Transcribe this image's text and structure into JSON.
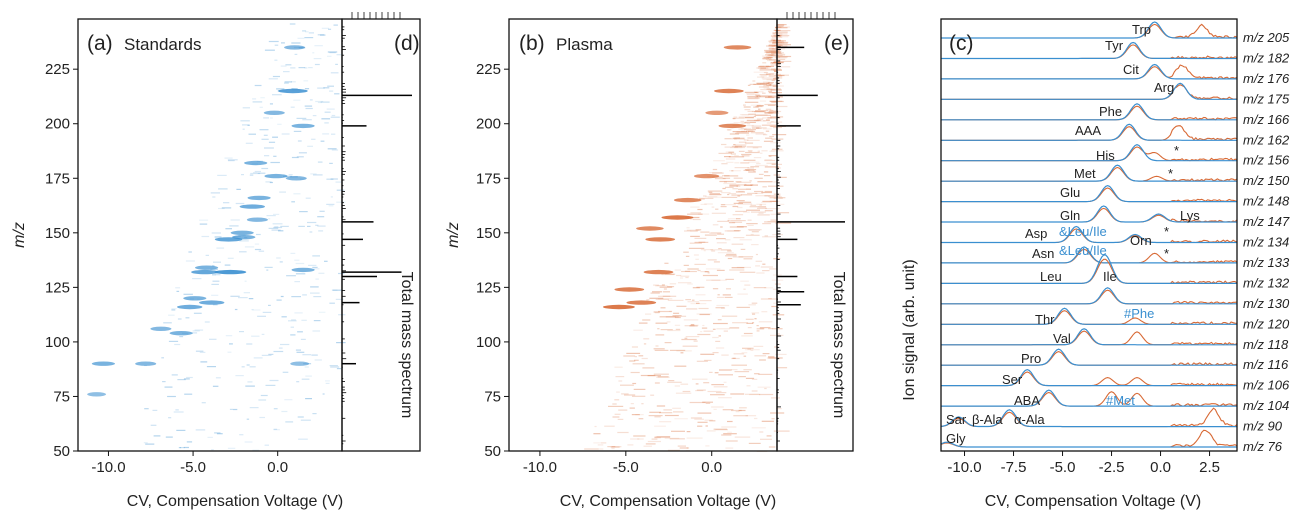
{
  "colors": {
    "standards": "#3a8fd0",
    "plasma": "#d86a36",
    "axis": "#111111",
    "spectrum": "#000000"
  },
  "panel_a": {
    "letter": "(a)",
    "title": "Standards"
  },
  "panel_b": {
    "letter": "(b)",
    "title": "Plasma"
  },
  "panel_c": {
    "letter": "(c)",
    "ylabel": "Ion signal (arb. unit)"
  },
  "panel_d": {
    "letter": "(d)",
    "label": "Total mass spectrum"
  },
  "panel_e": {
    "letter": "(e)",
    "label": "Total mass spectrum"
  },
  "heatmap_ylabel": "m/z",
  "xlabel": "CV, Compensation Voltage (V)",
  "chart_data": [
    {
      "panel": "a",
      "type": "heatmap",
      "title": "Standards",
      "xlabel": "CV, Compensation Voltage (V)",
      "ylabel": "m/z",
      "xlim": [
        -11.8,
        3.8
      ],
      "ylim": [
        50,
        248
      ],
      "xticks": [
        -10.0,
        -5.0,
        0.0
      ],
      "xtick_labels": [
        "-10.0",
        "-5.0",
        "0.0"
      ],
      "yticks": [
        50,
        75,
        100,
        125,
        150,
        175,
        200,
        225
      ],
      "features": [
        {
          "mz": 90,
          "cv": -10.3,
          "i": 0.6
        },
        {
          "mz": 90,
          "cv": -7.8,
          "i": 0.5
        },
        {
          "mz": 90,
          "cv": 1.3,
          "i": 0.4
        },
        {
          "mz": 76,
          "cv": -10.7,
          "i": 0.4
        },
        {
          "mz": 104,
          "cv": -5.7,
          "i": 0.6
        },
        {
          "mz": 106,
          "cv": -6.9,
          "i": 0.5
        },
        {
          "mz": 116,
          "cv": -5.2,
          "i": 0.7
        },
        {
          "mz": 118,
          "cv": -3.9,
          "i": 0.7
        },
        {
          "mz": 120,
          "cv": -4.9,
          "i": 0.6
        },
        {
          "mz": 132,
          "cv": -2.8,
          "i": 1.0
        },
        {
          "mz": 132,
          "cv": -4.3,
          "i": 0.8
        },
        {
          "mz": 133,
          "cv": 1.5,
          "i": 0.6
        },
        {
          "mz": 134,
          "cv": -4.2,
          "i": 0.6
        },
        {
          "mz": 147,
          "cv": -2.9,
          "i": 0.8
        },
        {
          "mz": 148,
          "cv": -2.0,
          "i": 0.6
        },
        {
          "mz": 150,
          "cv": -2.1,
          "i": 0.6
        },
        {
          "mz": 156,
          "cv": -1.2,
          "i": 0.5
        },
        {
          "mz": 162,
          "cv": -1.5,
          "i": 0.7
        },
        {
          "mz": 166,
          "cv": -1.1,
          "i": 0.6
        },
        {
          "mz": 175,
          "cv": 1.1,
          "i": 0.5
        },
        {
          "mz": 176,
          "cv": -0.1,
          "i": 0.6
        },
        {
          "mz": 182,
          "cv": -1.3,
          "i": 0.6
        },
        {
          "mz": 199,
          "cv": 1.5,
          "i": 0.6
        },
        {
          "mz": 205,
          "cv": -0.2,
          "i": 0.5
        },
        {
          "mz": 215,
          "cv": 0.9,
          "i": 0.9
        },
        {
          "mz": 235,
          "cv": 1.0,
          "i": 0.5
        }
      ]
    },
    {
      "panel": "b",
      "type": "heatmap",
      "title": "Plasma",
      "xlabel": "CV, Compensation Voltage (V)",
      "ylabel": "m/z",
      "xlim": [
        -11.8,
        3.8
      ],
      "ylim": [
        50,
        248
      ],
      "xticks": [
        -10.0,
        -5.0,
        0.0
      ],
      "xtick_labels": [
        "-10.0",
        "-5.0",
        "0.0"
      ],
      "yticks": [
        50,
        75,
        100,
        125,
        150,
        175,
        200,
        225
      ],
      "features": [
        {
          "mz": 116,
          "cv": -5.4,
          "i": 1.0
        },
        {
          "mz": 118,
          "cv": -4.1,
          "i": 0.9
        },
        {
          "mz": 124,
          "cv": -4.8,
          "i": 0.9
        },
        {
          "mz": 132,
          "cv": -3.1,
          "i": 0.9
        },
        {
          "mz": 147,
          "cv": -3.0,
          "i": 0.9
        },
        {
          "mz": 152,
          "cv": -3.6,
          "i": 0.8
        },
        {
          "mz": 157,
          "cv": -2.0,
          "i": 1.0
        },
        {
          "mz": 165,
          "cv": -1.4,
          "i": 0.8
        },
        {
          "mz": 176,
          "cv": -0.3,
          "i": 0.7
        },
        {
          "mz": 199,
          "cv": 1.2,
          "i": 0.8
        },
        {
          "mz": 205,
          "cv": 0.3,
          "i": 0.6
        },
        {
          "mz": 215,
          "cv": 1.0,
          "i": 0.9
        },
        {
          "mz": 235,
          "cv": 1.5,
          "i": 0.8
        }
      ]
    },
    {
      "panel": "c",
      "type": "line",
      "xlabel": "CV, Compensation Voltage (V)",
      "ylabel": "Ion signal (arb. unit)",
      "xlim": [
        -11.2,
        3.9
      ],
      "xticks": [
        -10.0,
        -7.5,
        -5.0,
        -2.5,
        0.0,
        2.5
      ],
      "xtick_labels": [
        "-10.0",
        "-7.5",
        "-5.0",
        "-2.5",
        "0.0",
        "2.5"
      ],
      "series_names": [
        "Standards",
        "Plasma"
      ],
      "traces": [
        {
          "label": "m/z 205",
          "peaks": [
            {
              "name": "Trp",
              "cv": -0.3,
              "h": 1.0
            }
          ],
          "plasma_peaks": [
            {
              "cv": 2.1,
              "h": 0.7
            }
          ]
        },
        {
          "label": "m/z 182",
          "peaks": [
            {
              "name": "Tyr",
              "cv": -1.4,
              "h": 1.0
            }
          ],
          "plasma_peaks": []
        },
        {
          "label": "m/z 176",
          "peaks": [
            {
              "name": "Cit",
              "cv": -0.3,
              "h": 0.9
            }
          ],
          "plasma_peaks": [
            {
              "cv": 1.1,
              "h": 0.8
            }
          ]
        },
        {
          "label": "m/z 175",
          "peaks": [
            {
              "name": "Arg",
              "cv": 1.0,
              "h": 1.0
            }
          ],
          "plasma_peaks": []
        },
        {
          "label": "m/z 166",
          "peaks": [
            {
              "name": "Phe",
              "cv": -1.2,
              "h": 1.0
            }
          ],
          "plasma_peaks": []
        },
        {
          "label": "m/z 162",
          "peaks": [
            {
              "name": "AAA",
              "cv": -1.6,
              "h": 1.0
            }
          ],
          "plasma_peaks": [
            {
              "cv": 0.9,
              "h": 0.9
            }
          ]
        },
        {
          "label": "m/z 156",
          "peaks": [
            {
              "name": "His",
              "cv": -1.2,
              "h": 1.0
            }
          ],
          "plasma_peaks": [
            {
              "cv": -0.3,
              "h": 0.5
            }
          ]
        },
        {
          "label": "m/z 150",
          "peaks": [
            {
              "name": "Met",
              "cv": -2.2,
              "h": 1.0
            }
          ],
          "plasma_peaks": [
            {
              "cv": -0.2,
              "h": 0.3
            }
          ]
        },
        {
          "label": "m/z 148",
          "peaks": [
            {
              "name": "Glu",
              "cv": -2.7,
              "h": 1.0
            }
          ],
          "plasma_peaks": []
        },
        {
          "label": "m/z 147",
          "peaks": [
            {
              "name": "Gln",
              "cv": -2.9,
              "h": 1.0
            },
            {
              "name": "Lys",
              "cv": -0.1,
              "h": 0.5
            }
          ],
          "plasma_peaks": []
        },
        {
          "label": "m/z 134",
          "peaks": [
            {
              "name": "Asp",
              "cv": -4.3,
              "h": 1.0
            },
            {
              "name": "Orn",
              "cv": -1.3,
              "h": 0.5
            }
          ],
          "plasma_peaks": []
        },
        {
          "label": "m/z 133",
          "peaks": [
            {
              "name": "Asn",
              "cv": -3.9,
              "h": 1.0
            }
          ],
          "plasma_peaks": [
            {
              "cv": -0.3,
              "h": 0.6
            }
          ]
        },
        {
          "label": "m/z 132",
          "peaks": [
            {
              "name": "Leu",
              "cv": -3.0,
              "h": 1.0
            },
            {
              "name": "Ile",
              "cv": -2.7,
              "h": 1.0
            }
          ],
          "plasma_peaks": []
        },
        {
          "label": "m/z 130",
          "peaks": [
            {
              "name": "",
              "cv": -2.7,
              "h": 1.0
            }
          ],
          "plasma_peaks": []
        },
        {
          "label": "m/z 120",
          "peaks": [
            {
              "name": "Thr",
              "cv": -4.9,
              "h": 1.0
            }
          ],
          "plasma_peaks": [
            {
              "cv": -1.3,
              "h": 0.4
            }
          ]
        },
        {
          "label": "m/z 118",
          "peaks": [
            {
              "name": "Val",
              "cv": -3.9,
              "h": 1.0
            }
          ],
          "plasma_peaks": [
            {
              "cv": -1.2,
              "h": 0.8
            }
          ]
        },
        {
          "label": "m/z 116",
          "peaks": [
            {
              "name": "Pro",
              "cv": -5.2,
              "h": 1.0
            }
          ],
          "plasma_peaks": []
        },
        {
          "label": "m/z 106",
          "peaks": [
            {
              "name": "Ser",
              "cv": -6.8,
              "h": 1.0
            }
          ],
          "plasma_peaks": [
            {
              "cv": -2.7,
              "h": 0.5
            },
            {
              "cv": -1.2,
              "h": 0.5
            }
          ]
        },
        {
          "label": "m/z 104",
          "peaks": [
            {
              "name": "ABA",
              "cv": -5.7,
              "h": 1.0
            }
          ],
          "plasma_peaks": [
            {
              "cv": -2.5,
              "h": 0.9
            },
            {
              "cv": -1.2,
              "h": 0.8
            }
          ]
        },
        {
          "label": "m/z 90",
          "peaks": [
            {
              "name": "Sar",
              "cv": -10.3,
              "h": 0.6
            },
            {
              "name": "β-Ala",
              "cv": -7.8,
              "h": 0.6
            },
            {
              "name": "α-Ala",
              "cv": -7.6,
              "h": 0.5
            }
          ],
          "plasma_peaks": [
            {
              "cv": 2.7,
              "h": 1.0
            }
          ]
        },
        {
          "label": "m/z 76",
          "peaks": [
            {
              "name": "Gly",
              "cv": -10.9,
              "h": 0.3
            }
          ],
          "plasma_peaks": [
            {
              "cv": 2.3,
              "h": 1.0
            }
          ]
        }
      ],
      "annotations": [
        "&Leu/Ile",
        "&Leu/Ile",
        "#Phe",
        "#Met",
        "*",
        "*",
        "*"
      ]
    },
    {
      "panel": "d",
      "type": "bar",
      "label": "Total mass spectrum",
      "peaks": [
        {
          "mz": 213,
          "h": 1.0
        },
        {
          "mz": 132,
          "h": 0.85
        },
        {
          "mz": 130,
          "h": 0.5
        },
        {
          "mz": 155,
          "h": 0.45
        },
        {
          "mz": 199,
          "h": 0.35
        },
        {
          "mz": 147,
          "h": 0.3
        },
        {
          "mz": 118,
          "h": 0.25
        },
        {
          "mz": 90,
          "h": 0.2
        }
      ]
    },
    {
      "panel": "e",
      "type": "bar",
      "label": "Total mass spectrum",
      "peaks": [
        {
          "mz": 155,
          "h": 1.0
        },
        {
          "mz": 213,
          "h": 0.6
        },
        {
          "mz": 235,
          "h": 0.4
        },
        {
          "mz": 123,
          "h": 0.4
        },
        {
          "mz": 130,
          "h": 0.3
        },
        {
          "mz": 117,
          "h": 0.35
        },
        {
          "mz": 199,
          "h": 0.35
        },
        {
          "mz": 147,
          "h": 0.3
        }
      ]
    }
  ],
  "panel_c_labels": [
    "m/z 205",
    "m/z 182",
    "m/z 176",
    "m/z 175",
    "m/z 166",
    "m/z 162",
    "m/z 156",
    "m/z 150",
    "m/z 148",
    "m/z 147",
    "m/z 134",
    "m/z 133",
    "m/z 132",
    "m/z 130",
    "m/z 120",
    "m/z 118",
    "m/z 116",
    "m/z 106",
    "m/z 104",
    "m/z 90",
    "m/z 76"
  ],
  "panel_c_aa": {
    "Trp": "Trp",
    "Tyr": "Tyr",
    "Cit": "Cit",
    "Arg": "Arg",
    "Phe": "Phe",
    "AAA": "AAA",
    "His": "His",
    "Met": "Met",
    "Glu": "Glu",
    "Gln": "Gln",
    "Lys": "Lys",
    "Asp": "Asp",
    "Orn": "Orn",
    "Asn": "Asn",
    "Leu": "Leu",
    "Ile": "Ile",
    "Thr": "Thr",
    "Val": "Val",
    "Pro": "Pro",
    "Ser": "Ser",
    "ABA": "ABA",
    "Sar": "Sar",
    "bAla": "β-Ala",
    "aAla": "α-Ala",
    "Gly": "Gly"
  },
  "panel_c_notes": {
    "leuile1": "&Leu/Ile",
    "leuile2": "&Leu/Ile",
    "phe": "#Phe",
    "met": "#Met",
    "star": "*"
  }
}
